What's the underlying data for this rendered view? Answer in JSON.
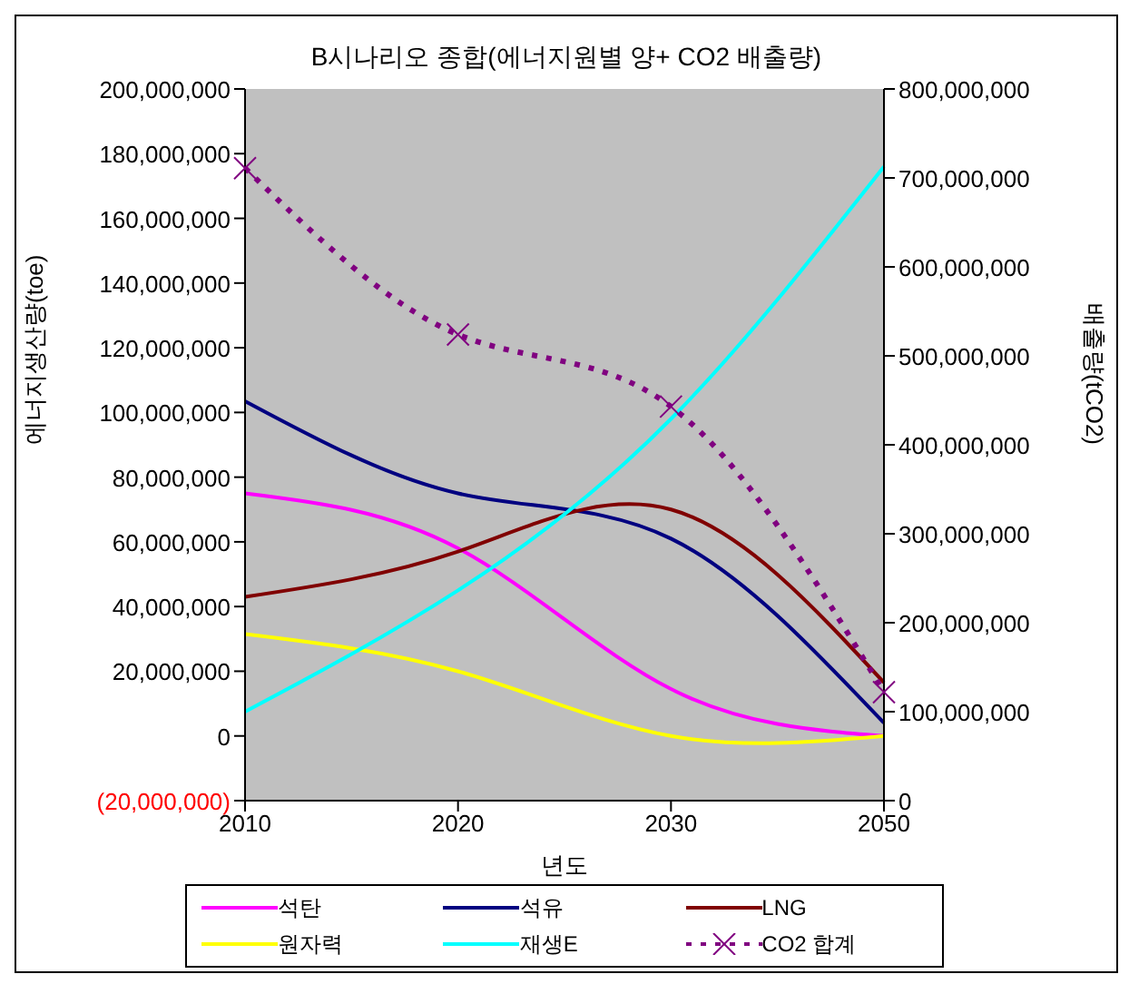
{
  "chart_data": {
    "type": "line",
    "title": "B시나리오 종합(에너지원별 양+ CO2 배출량)",
    "xlabel": "년도",
    "ylabel": "에너지생산량(toe)",
    "y2label": "배출량(tCO2)",
    "categories": [
      "2010",
      "2020",
      "2030",
      "2050"
    ],
    "series": [
      {
        "name": "석탄",
        "color": "#ff00ff",
        "values": [
          75000000,
          58000000,
          14500000,
          0
        ]
      },
      {
        "name": "석유",
        "color": "#000080",
        "values": [
          103500000,
          75000000,
          61000000,
          4000000
        ]
      },
      {
        "name": "LNG",
        "color": "#800000",
        "values": [
          43000000,
          57000000,
          70000000,
          16500000
        ]
      },
      {
        "name": "원자력",
        "color": "#ffff00",
        "values": [
          31500000,
          20000000,
          0,
          0
        ]
      },
      {
        "name": "재생E",
        "color": "#00ffff",
        "values": [
          7500000,
          45000000,
          98000000,
          176000000
        ]
      },
      {
        "name": "CO2 합계",
        "color": "#800080",
        "values": [
          711000000,
          524000000,
          443000000,
          122000000
        ],
        "axis": "y2",
        "marker": "cross",
        "line_style": "dotted"
      }
    ],
    "ylim": [
      -20000000,
      200000000
    ],
    "yticks": [
      {
        "value": -20000000,
        "label": "(20,000,000)"
      },
      0,
      {
        "value": 20000000,
        "label": "20,000,000"
      },
      {
        "value": 40000000,
        "label": "40,000,000"
      },
      {
        "value": 60000000,
        "label": "60,000,000"
      },
      {
        "value": 80000000,
        "label": "80,000,000"
      },
      {
        "value": 100000000,
        "label": "100,000,000"
      },
      {
        "value": 120000000,
        "label": "120,000,000"
      },
      {
        "value": 140000000,
        "label": "140,000,000"
      },
      {
        "value": 160000000,
        "label": "160,000,000"
      },
      {
        "value": 180000000,
        "label": "180,000,000"
      },
      {
        "value": 200000000,
        "label": "200,000,000"
      }
    ],
    "y2lim": [
      0,
      800000000
    ],
    "y2ticks": [
      0,
      {
        "value": 100000000,
        "label": "100,000,000"
      },
      {
        "value": 200000000,
        "label": "200,000,000"
      },
      {
        "value": 300000000,
        "label": "300,000,000"
      },
      {
        "value": 400000000,
        "label": "400,000,000"
      },
      {
        "value": 500000000,
        "label": "500,000,000"
      },
      {
        "value": 600000000,
        "label": "600,000,000"
      },
      {
        "value": 700000000,
        "label": "700,000,000"
      },
      {
        "value": 800000000,
        "label": "800,000,000"
      }
    ],
    "grid": false,
    "legend": "bottom",
    "marker": "none",
    "line_style": "solid"
  }
}
